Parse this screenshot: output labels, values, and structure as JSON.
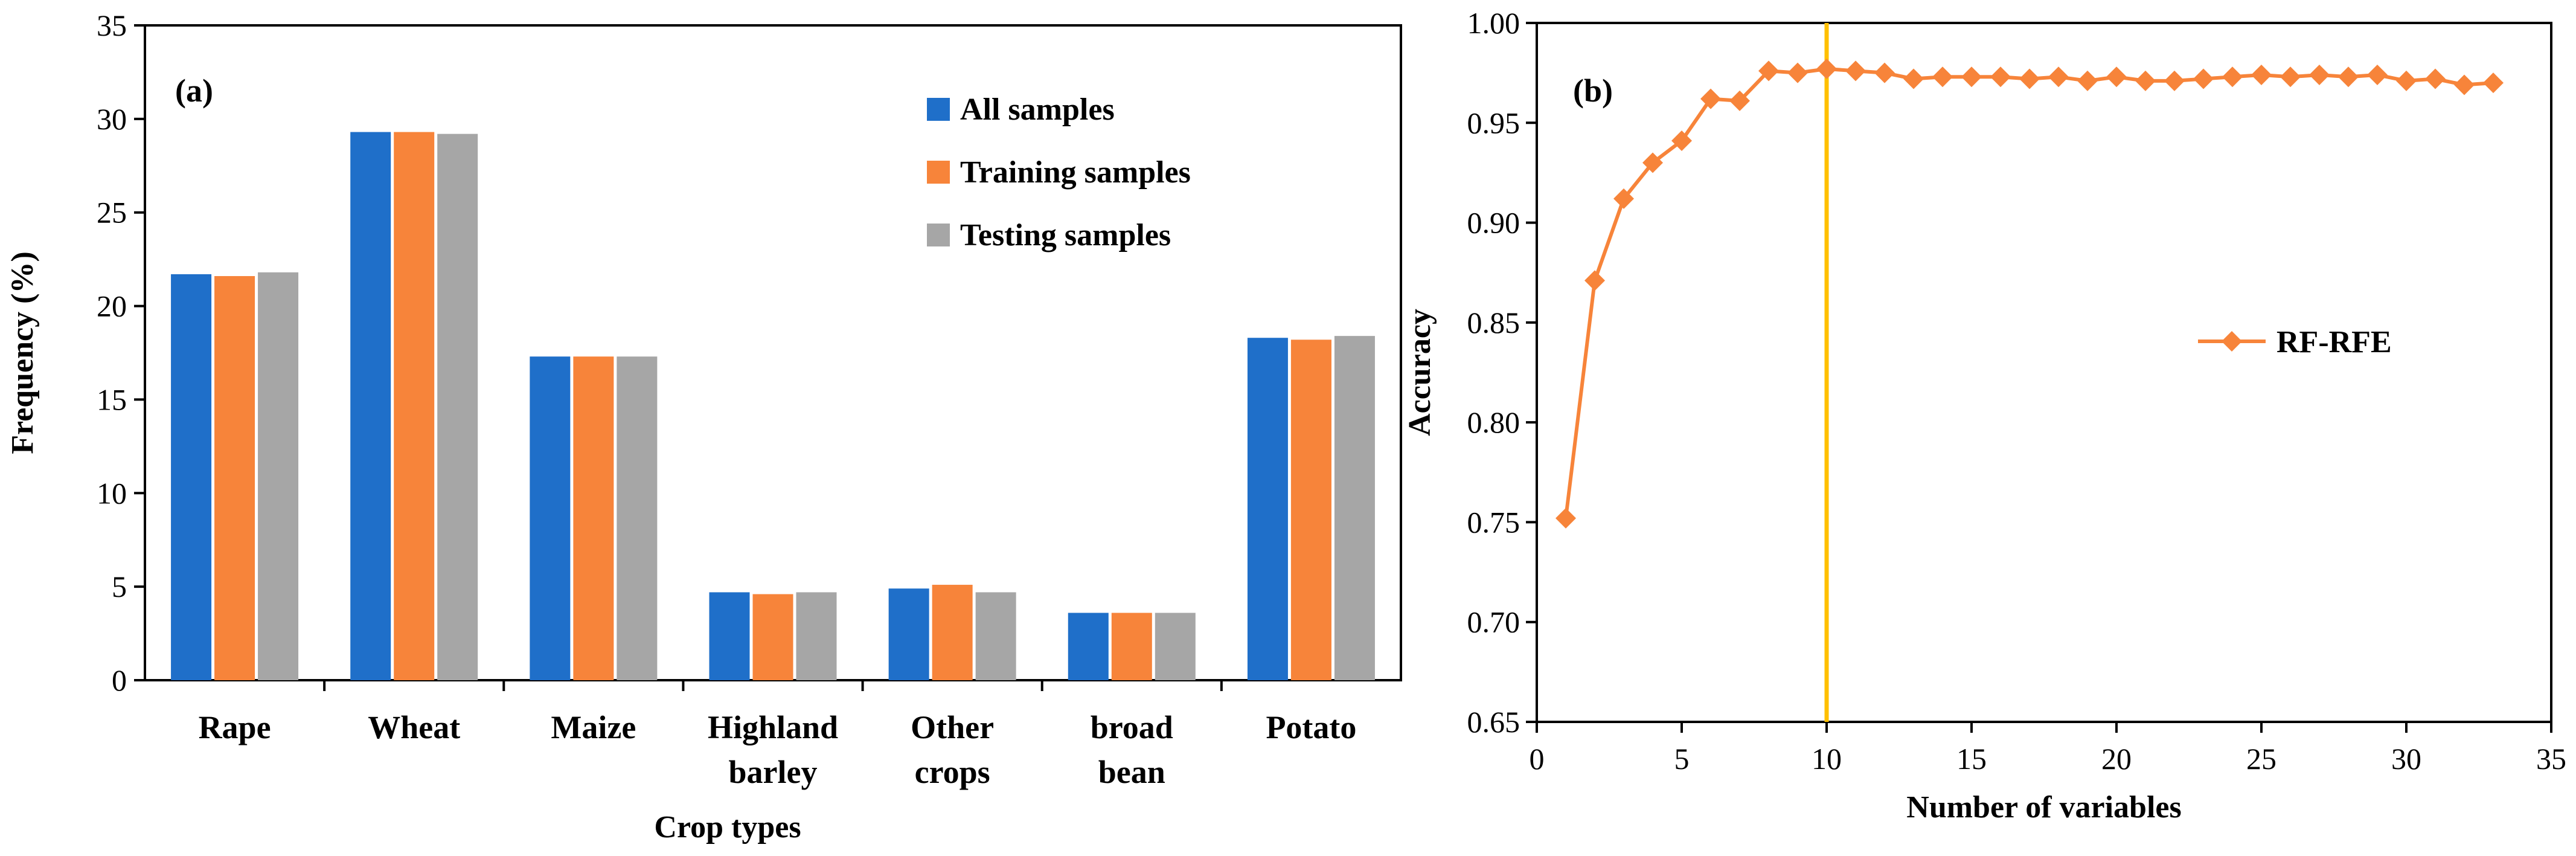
{
  "chart_data": [
    {
      "type": "bar",
      "panel": "(a)",
      "title": "",
      "xlabel": "Crop types",
      "ylabel": "Frequency (%)",
      "ylim": [
        0,
        35
      ],
      "yticks": [
        "0",
        "5",
        "10",
        "15",
        "20",
        "25",
        "30",
        "35"
      ],
      "categories": [
        [
          "Rape"
        ],
        [
          "Wheat"
        ],
        [
          "Maize"
        ],
        [
          "Highland",
          "barley"
        ],
        [
          "Other",
          "crops"
        ],
        [
          "broad",
          "bean"
        ],
        [
          "Potato"
        ]
      ],
      "series": [
        {
          "name": "All samples",
          "color": "#1f6fc9",
          "values": [
            21.7,
            29.3,
            17.3,
            4.7,
            4.9,
            3.6,
            18.3
          ]
        },
        {
          "name": "Training samples",
          "color": "#f7843a",
          "values": [
            21.6,
            29.3,
            17.3,
            4.6,
            5.1,
            3.6,
            18.2
          ]
        },
        {
          "name": "Testing samples",
          "color": "#a6a6a6",
          "values": [
            21.8,
            29.2,
            17.3,
            4.7,
            4.7,
            3.6,
            18.4
          ]
        }
      ],
      "grid": false,
      "legend_position": "top-right"
    },
    {
      "type": "line",
      "panel": "(b)",
      "title": "",
      "xlabel": "Number of variables",
      "ylabel": "Accuracy",
      "xlim": [
        0,
        35
      ],
      "ylim": [
        0.65,
        1.0
      ],
      "xticks": [
        "0",
        "5",
        "10",
        "15",
        "20",
        "25",
        "30",
        "35"
      ],
      "yticks": [
        "0.65",
        "0.70",
        "0.75",
        "0.80",
        "0.85",
        "0.90",
        "0.95",
        "1.00"
      ],
      "reference_line_x": 10,
      "reference_line_color": "#ffc000",
      "series": [
        {
          "name": "RF-RFE",
          "color": "#f7843a",
          "x": [
            1,
            2,
            3,
            4,
            5,
            6,
            7,
            8,
            9,
            10,
            11,
            12,
            13,
            14,
            15,
            16,
            17,
            18,
            19,
            20,
            21,
            22,
            23,
            24,
            25,
            26,
            27,
            28,
            29,
            30,
            31,
            32,
            33
          ],
          "y": [
            0.752,
            0.871,
            0.912,
            0.93,
            0.941,
            0.962,
            0.961,
            0.976,
            0.975,
            0.977,
            0.976,
            0.975,
            0.972,
            0.973,
            0.973,
            0.973,
            0.972,
            0.973,
            0.971,
            0.973,
            0.971,
            0.971,
            0.972,
            0.973,
            0.974,
            0.973,
            0.974,
            0.973,
            0.974,
            0.971,
            0.972,
            0.969,
            0.97
          ]
        }
      ],
      "grid": false,
      "legend_position": "center-right"
    }
  ]
}
